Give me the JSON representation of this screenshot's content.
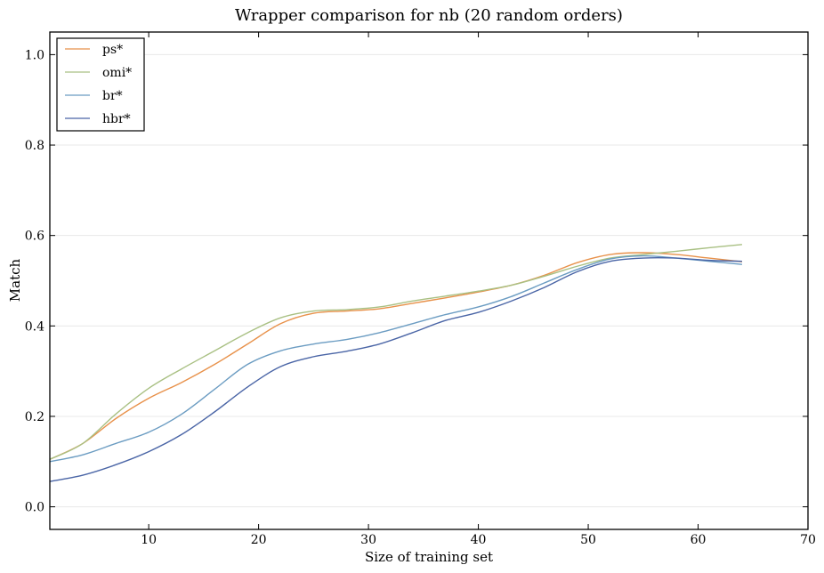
{
  "chart_data": {
    "type": "line",
    "title": "Wrapper comparison for nb (20 random orders)",
    "xlabel": "Size of training set",
    "ylabel": "Match",
    "xlim": [
      1,
      70
    ],
    "ylim": [
      -0.05,
      1.05
    ],
    "xticks": [
      10,
      20,
      30,
      40,
      50,
      60,
      70
    ],
    "yticks": [
      0.0,
      0.2,
      0.4,
      0.6,
      0.8,
      1.0
    ],
    "xtick_labels": [
      "10",
      "20",
      "30",
      "40",
      "50",
      "60",
      "70"
    ],
    "ytick_labels": [
      "0.0",
      "0.2",
      "0.4",
      "0.6",
      "0.8",
      "1.0"
    ],
    "grid": "horizontal",
    "legend_position": "top-left",
    "x": [
      1,
      4,
      7,
      10,
      13,
      16,
      19,
      22,
      25,
      28,
      31,
      34,
      37,
      40,
      43,
      46,
      49,
      52,
      55,
      58,
      61,
      64
    ],
    "series": [
      {
        "name": "ps*",
        "color": "#e8914a",
        "values": [
          0.105,
          0.14,
          0.195,
          0.24,
          0.275,
          0.315,
          0.36,
          0.405,
          0.428,
          0.433,
          0.438,
          0.45,
          0.462,
          0.475,
          0.49,
          0.512,
          0.54,
          0.558,
          0.562,
          0.558,
          0.55,
          0.542
        ]
      },
      {
        "name": "omi*",
        "color": "#a9c083",
        "values": [
          0.105,
          0.14,
          0.205,
          0.262,
          0.305,
          0.345,
          0.385,
          0.418,
          0.433,
          0.436,
          0.442,
          0.455,
          0.466,
          0.477,
          0.49,
          0.51,
          0.532,
          0.55,
          0.558,
          0.565,
          0.573,
          0.58
        ]
      },
      {
        "name": "br*",
        "color": "#6b9cc2",
        "values": [
          0.1,
          0.115,
          0.14,
          0.165,
          0.205,
          0.26,
          0.315,
          0.345,
          0.36,
          0.37,
          0.385,
          0.405,
          0.425,
          0.442,
          0.465,
          0.495,
          0.525,
          0.548,
          0.555,
          0.55,
          0.543,
          0.536
        ]
      },
      {
        "name": "hbr*",
        "color": "#4a65a6",
        "values": [
          0.056,
          0.07,
          0.093,
          0.122,
          0.16,
          0.21,
          0.265,
          0.31,
          0.332,
          0.344,
          0.36,
          0.385,
          0.412,
          0.43,
          0.455,
          0.485,
          0.52,
          0.543,
          0.55,
          0.55,
          0.545,
          0.543
        ]
      }
    ]
  }
}
